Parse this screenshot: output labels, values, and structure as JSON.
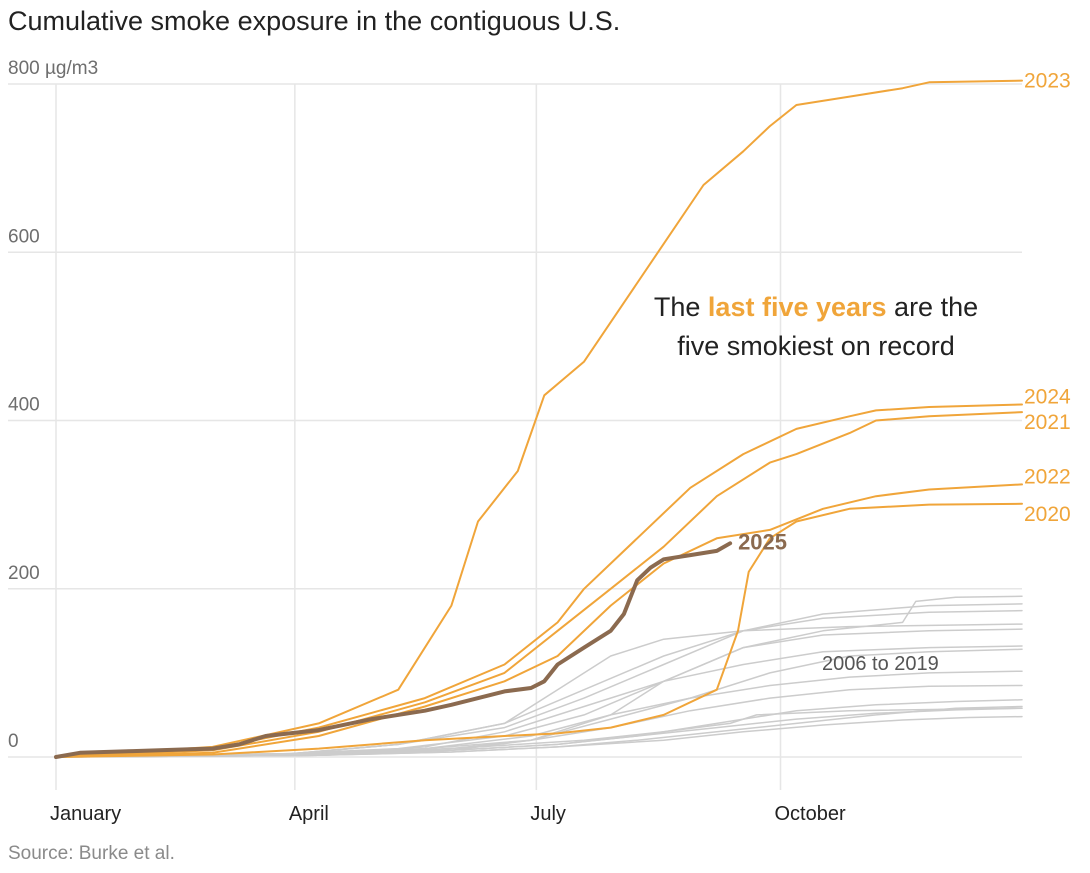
{
  "title": "Cumulative smoke exposure in the contiguous U.S.",
  "source": "Source: Burke et al.",
  "colors": {
    "recent": "#f0a53a",
    "historic": "#cccccc",
    "current": "#8b6a4f",
    "grid": "#e6e6e6"
  },
  "annotation": {
    "before": "The ",
    "highlight": "last five years",
    "after": " are the",
    "line2": "five smokiest on record"
  },
  "chart_data": {
    "type": "line",
    "title": "Cumulative smoke exposure in the contiguous U.S.",
    "xlabel": "",
    "ylabel": "",
    "y_unit": "µg/m3",
    "x_unit": "day of year",
    "xlim": [
      1,
      365
    ],
    "ylim": [
      0,
      800
    ],
    "y_ticks": [
      0,
      200,
      400,
      600,
      800
    ],
    "y_tick_labels": [
      "0",
      "200",
      "400",
      "600",
      "800 µg/m3"
    ],
    "x_ticks": [
      {
        "label": "January",
        "day": 1
      },
      {
        "label": "April",
        "day": 91
      },
      {
        "label": "July",
        "day": 182
      },
      {
        "label": "October",
        "day": 274
      }
    ],
    "grid": true,
    "historic_label": "2006 to 2019",
    "series": [
      {
        "name": "2023",
        "group": "recent",
        "x": [
          1,
          60,
          100,
          130,
          150,
          160,
          175,
          185,
          200,
          215,
          230,
          245,
          260,
          270,
          280,
          300,
          320,
          330,
          365
        ],
        "y": [
          0,
          12,
          40,
          80,
          180,
          280,
          340,
          430,
          470,
          540,
          610,
          680,
          720,
          750,
          775,
          785,
          795,
          802,
          804
        ]
      },
      {
        "name": "2024",
        "group": "recent",
        "x": [
          1,
          60,
          100,
          140,
          170,
          190,
          200,
          220,
          240,
          260,
          280,
          300,
          310,
          330,
          365
        ],
        "y": [
          0,
          10,
          35,
          70,
          110,
          160,
          200,
          260,
          320,
          360,
          390,
          405,
          412,
          416,
          419
        ]
      },
      {
        "name": "2021",
        "group": "recent",
        "x": [
          1,
          60,
          100,
          140,
          170,
          190,
          210,
          230,
          250,
          270,
          280,
          300,
          310,
          330,
          365
        ],
        "y": [
          0,
          8,
          30,
          65,
          100,
          150,
          200,
          250,
          310,
          350,
          360,
          385,
          400,
          405,
          410
        ]
      },
      {
        "name": "2022",
        "group": "recent",
        "x": [
          1,
          60,
          100,
          140,
          170,
          190,
          210,
          230,
          250,
          270,
          290,
          310,
          330,
          365
        ],
        "y": [
          0,
          5,
          25,
          60,
          90,
          120,
          180,
          230,
          260,
          270,
          295,
          310,
          318,
          324
        ]
      },
      {
        "name": "2020",
        "group": "recent",
        "x": [
          1,
          60,
          100,
          140,
          170,
          190,
          210,
          230,
          250,
          258,
          262,
          270,
          280,
          300,
          330,
          365
        ],
        "y": [
          0,
          3,
          10,
          20,
          25,
          28,
          35,
          50,
          80,
          150,
          220,
          260,
          280,
          295,
          300,
          301
        ]
      },
      {
        "name": "2025",
        "group": "current",
        "x": [
          1,
          10,
          30,
          50,
          60,
          70,
          80,
          100,
          120,
          140,
          150,
          170,
          180,
          185,
          190,
          200,
          210,
          215,
          220,
          225,
          230,
          240,
          250,
          255
        ],
        "y": [
          0,
          5,
          7,
          9,
          10,
          15,
          25,
          32,
          45,
          55,
          62,
          78,
          82,
          90,
          110,
          130,
          150,
          170,
          210,
          225,
          235,
          240,
          245,
          254
        ]
      },
      {
        "name": "2006",
        "group": "historic",
        "x": [
          1,
          80,
          120,
          160,
          200,
          230,
          255,
          265,
          300,
          365
        ],
        "y": [
          0,
          2,
          5,
          12,
          20,
          30,
          40,
          50,
          55,
          58
        ]
      },
      {
        "name": "2007",
        "group": "historic",
        "x": [
          1,
          100,
          140,
          180,
          210,
          240,
          270,
          300,
          330,
          365
        ],
        "y": [
          0,
          3,
          10,
          20,
          45,
          70,
          100,
          120,
          125,
          128
        ]
      },
      {
        "name": "2008",
        "group": "historic",
        "x": [
          1,
          90,
          130,
          170,
          190,
          210,
          230,
          260,
          300,
          365
        ],
        "y": [
          0,
          4,
          15,
          40,
          80,
          120,
          140,
          150,
          155,
          158
        ]
      },
      {
        "name": "2009",
        "group": "historic",
        "x": [
          1,
          100,
          150,
          190,
          220,
          250,
          280,
          310,
          340,
          365
        ],
        "y": [
          0,
          2,
          8,
          15,
          25,
          40,
          55,
          62,
          66,
          68
        ]
      },
      {
        "name": "2010",
        "group": "historic",
        "x": [
          1,
          100,
          150,
          190,
          230,
          260,
          290,
          320,
          345,
          365
        ],
        "y": [
          0,
          2,
          6,
          12,
          20,
          30,
          38,
          44,
          47,
          48
        ]
      },
      {
        "name": "2011",
        "group": "historic",
        "x": [
          1,
          100,
          140,
          170,
          200,
          230,
          260,
          290,
          330,
          365
        ],
        "y": [
          0,
          3,
          12,
          30,
          60,
          90,
          110,
          125,
          130,
          132
        ]
      },
      {
        "name": "2012",
        "group": "historic",
        "x": [
          1,
          90,
          130,
          170,
          200,
          230,
          260,
          290,
          330,
          365
        ],
        "y": [
          0,
          4,
          15,
          35,
          70,
          110,
          150,
          170,
          180,
          182
        ]
      },
      {
        "name": "2013",
        "group": "historic",
        "x": [
          1,
          100,
          150,
          180,
          210,
          240,
          270,
          300,
          330,
          365
        ],
        "y": [
          0,
          2,
          10,
          20,
          35,
          55,
          70,
          80,
          84,
          85
        ]
      },
      {
        "name": "2014",
        "group": "historic",
        "x": [
          1,
          90,
          140,
          180,
          210,
          240,
          270,
          300,
          330,
          365
        ],
        "y": [
          0,
          3,
          10,
          25,
          50,
          70,
          85,
          95,
          100,
          102
        ]
      },
      {
        "name": "2015",
        "group": "historic",
        "x": [
          1,
          80,
          130,
          170,
          200,
          230,
          260,
          290,
          320,
          325,
          340,
          365
        ],
        "y": [
          0,
          3,
          10,
          25,
          50,
          90,
          130,
          150,
          160,
          185,
          190,
          191
        ]
      },
      {
        "name": "2016",
        "group": "historic",
        "x": [
          1,
          100,
          150,
          190,
          220,
          250,
          280,
          310,
          340,
          365
        ],
        "y": [
          0,
          2,
          8,
          15,
          25,
          35,
          45,
          52,
          56,
          58
        ]
      },
      {
        "name": "2017",
        "group": "historic",
        "x": [
          1,
          90,
          130,
          170,
          200,
          230,
          260,
          290,
          330,
          365
        ],
        "y": [
          0,
          4,
          15,
          40,
          80,
          120,
          150,
          165,
          172,
          174
        ]
      },
      {
        "name": "2018",
        "group": "historic",
        "x": [
          1,
          100,
          150,
          180,
          210,
          230,
          260,
          290,
          330,
          365
        ],
        "y": [
          0,
          2,
          8,
          20,
          50,
          90,
          130,
          145,
          150,
          152
        ]
      },
      {
        "name": "2019",
        "group": "historic",
        "x": [
          1,
          100,
          150,
          190,
          220,
          250,
          280,
          310,
          340,
          365
        ],
        "y": [
          0,
          2,
          6,
          12,
          20,
          30,
          40,
          50,
          58,
          60
        ]
      }
    ]
  }
}
